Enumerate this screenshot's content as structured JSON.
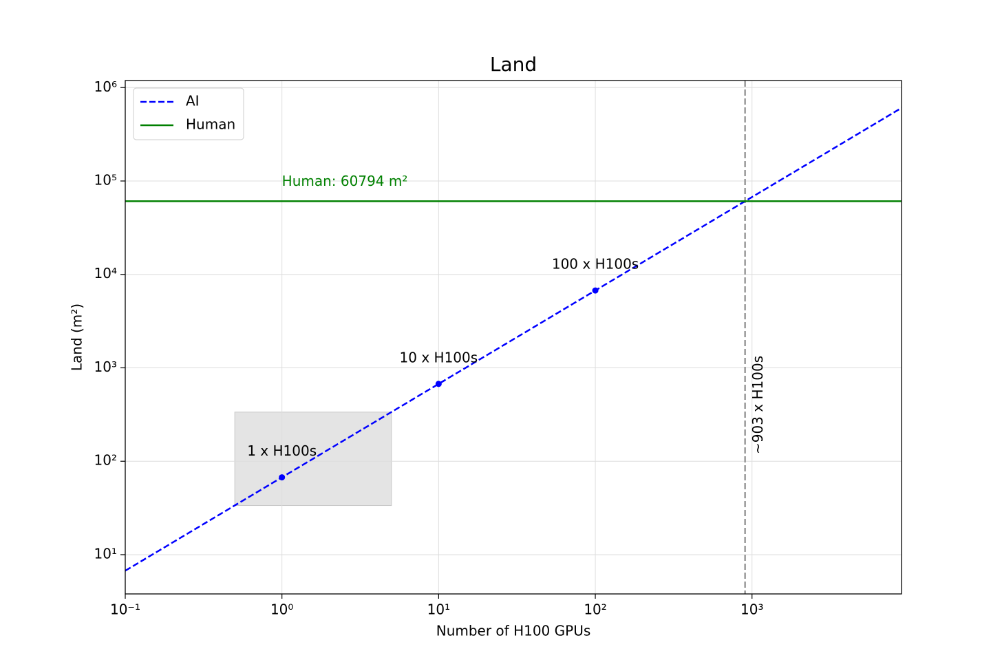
{
  "chart_data": {
    "type": "line",
    "title": "Land",
    "xlabel": "Number of H100 GPUs",
    "ylabel": "Land (m²)",
    "log_x": true,
    "log_y": true,
    "grid": true,
    "legend": "upper left",
    "xlim": [
      0.1,
      9000
    ],
    "ylim": [
      3.8,
      1190000
    ],
    "xticks": [
      {
        "value": 0.1,
        "label": "10⁻¹"
      },
      {
        "value": 1,
        "label": "10⁰"
      },
      {
        "value": 10,
        "label": "10¹"
      },
      {
        "value": 100,
        "label": "10²"
      },
      {
        "value": 1000,
        "label": "10³"
      }
    ],
    "yticks": [
      {
        "value": 10,
        "label": "10¹"
      },
      {
        "value": 100,
        "label": "10²"
      },
      {
        "value": 1000,
        "label": "10³"
      },
      {
        "value": 10000,
        "label": "10⁴"
      },
      {
        "value": 100000,
        "label": "10⁵"
      },
      {
        "value": 1000000,
        "label": "10⁶"
      }
    ],
    "series": [
      {
        "name": "AI",
        "color": "#0000ff",
        "style": "dashed",
        "x": [
          0.1,
          9000
        ],
        "values": [
          6.73,
          605700
        ]
      },
      {
        "name": "Human",
        "color": "#008000",
        "style": "solid",
        "x": [
          0.1,
          9000
        ],
        "values": [
          60794,
          60794
        ]
      }
    ],
    "points": {
      "color": "#0000ff",
      "x": [
        1,
        10,
        100
      ],
      "values": [
        67.3,
        673,
        6730
      ],
      "labels": [
        "1 x H100s",
        "10 x H100s",
        "100 x H100s"
      ]
    },
    "human_annotation": "Human: 60794 m²",
    "threshold": {
      "x": 903,
      "label": "~903 x H100s",
      "color": "#999999"
    },
    "highlight_box": {
      "x": [
        0.5,
        5
      ],
      "y": [
        33.6,
        336
      ],
      "color": "#e4e4e4"
    }
  }
}
